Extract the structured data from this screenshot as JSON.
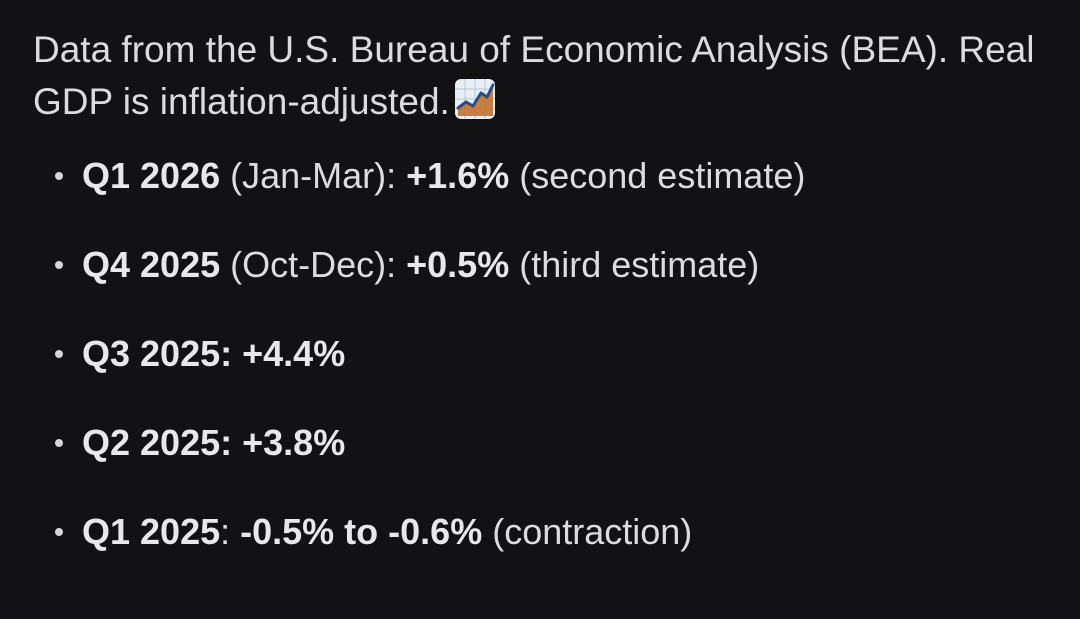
{
  "intro": {
    "text": "Data from the U.S. Bureau of Economic Analysis (BEA). Real GDP is inflation-adjusted.",
    "emoji_icon": "chart-increasing-emoji"
  },
  "items": [
    {
      "quarter": "Q1 2026",
      "period": " (Jan-Mar): ",
      "value": "+1.6%",
      "note": " (second estimate)"
    },
    {
      "quarter": "Q4 2025",
      "period": " (Oct-Dec): ",
      "value": "+0.5%",
      "note": " (third estimate)"
    },
    {
      "quarter": "Q3 2025",
      "period": ": ",
      "value": "+4.4%",
      "note": ""
    },
    {
      "quarter": "Q2 2025",
      "period": ": ",
      "value": "+3.8%",
      "note": ""
    },
    {
      "quarter": "Q1 2025",
      "period": ": ",
      "value": "-0.5% to -0.6%",
      "note": " (contraction)"
    }
  ],
  "colors": {
    "background": "#121214",
    "text": "#dcdcdf"
  }
}
